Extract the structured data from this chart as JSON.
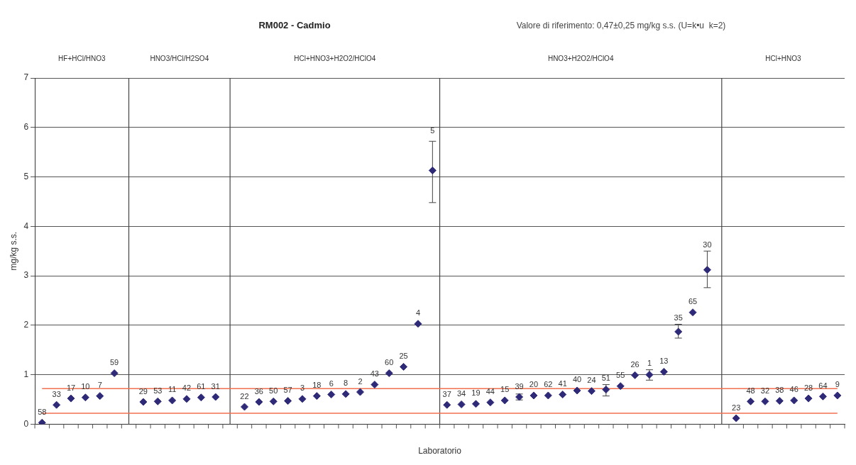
{
  "chart_data": {
    "type": "scatter",
    "title": "RM002 - Cadmio",
    "subtitle": "Valore di riferimento: 0,47±0,25 mg/kg s.s. (U=k•u  k=2)",
    "xlabel": "Laboratorio",
    "ylabel": "mg/kg s.s.",
    "categories": [
      null,
      null,
      null,
      null,
      null,
      null,
      null,
      null,
      null,
      null,
      null,
      null,
      null,
      null,
      null,
      null,
      null,
      null,
      null,
      null,
      null,
      null,
      null,
      null,
      null,
      null,
      null,
      null,
      null,
      null,
      null,
      null,
      null,
      null,
      null,
      null,
      null,
      null,
      null,
      null,
      null,
      null,
      null,
      null,
      null,
      null,
      null,
      null,
      null,
      null,
      null,
      null,
      null,
      null,
      null,
      null
    ],
    "ylim": [
      0,
      7
    ],
    "yticks": [
      0,
      1,
      2,
      3,
      4,
      5,
      6,
      7
    ],
    "grid": true,
    "legend": false,
    "marker": "diamond",
    "series": [
      {
        "color": "#2e2a78",
        "values": [
          0.03,
          0.39,
          0.52,
          0.54,
          0.57,
          1.03,
          null,
          null,
          null,
          null,
          null,
          null,
          null,
          null,
          null,
          null,
          null,
          null,
          null,
          null,
          null,
          null,
          null,
          null,
          null,
          null,
          null,
          null,
          null,
          null,
          null,
          null,
          null,
          null,
          null,
          null,
          null,
          null,
          null,
          null,
          null,
          null,
          null,
          null,
          null,
          null,
          null,
          null,
          null,
          null,
          null,
          null,
          null,
          null,
          null,
          null
        ]
      },
      {
        "color": "#2e2a78",
        "values": [
          null,
          null,
          null,
          null,
          null,
          null,
          null,
          0.45,
          0.46,
          0.48,
          0.51,
          0.54,
          0.55,
          null,
          null,
          null,
          null,
          null,
          null,
          null,
          null,
          null,
          null,
          null,
          null,
          null,
          null,
          null,
          null,
          null,
          null,
          null,
          null,
          null,
          null,
          null,
          null,
          null,
          null,
          null,
          null,
          null,
          null,
          null,
          null,
          null,
          null,
          null,
          null,
          null,
          null,
          null,
          null,
          null,
          null,
          null
        ]
      },
      {
        "color": "#2e2a78",
        "values": [
          null,
          null,
          null,
          null,
          null,
          null,
          null,
          null,
          null,
          null,
          null,
          null,
          null,
          null,
          0.35,
          0.45,
          0.46,
          0.47,
          0.51,
          0.57,
          0.6,
          0.61,
          0.65,
          0.8,
          1.03,
          1.16,
          2.03,
          5.13,
          null,
          null,
          null,
          null,
          null,
          null,
          null,
          null,
          null,
          null,
          null,
          null,
          null,
          null,
          null,
          null,
          null,
          null,
          null,
          null,
          null,
          null,
          null,
          null,
          null,
          null,
          null,
          null
        ],
        "errors": [
          null,
          null,
          null,
          null,
          null,
          null,
          null,
          null,
          null,
          null,
          null,
          null,
          null,
          null,
          null,
          null,
          null,
          null,
          null,
          null,
          null,
          null,
          null,
          null,
          null,
          null,
          null,
          [
            4.48,
            5.72
          ],
          null,
          null,
          null,
          null,
          null,
          null,
          null,
          null,
          null,
          null,
          null,
          null,
          null,
          null,
          null,
          null,
          null,
          null,
          null,
          null,
          null,
          null,
          null,
          null,
          null,
          null,
          null,
          null
        ]
      },
      {
        "color": "#2e2a78",
        "values": [
          null,
          null,
          null,
          null,
          null,
          null,
          null,
          null,
          null,
          null,
          null,
          null,
          null,
          null,
          null,
          null,
          null,
          null,
          null,
          null,
          null,
          null,
          null,
          null,
          null,
          null,
          null,
          null,
          0.39,
          0.4,
          0.41,
          0.44,
          0.48,
          0.55,
          0.58,
          0.58,
          0.6,
          0.68,
          0.67,
          0.7,
          0.77,
          0.99,
          1.0,
          1.06,
          1.87,
          2.26,
          3.12,
          null,
          null,
          null,
          null,
          null,
          null,
          null,
          null,
          null
        ],
        "errors": [
          null,
          null,
          null,
          null,
          null,
          null,
          null,
          null,
          null,
          null,
          null,
          null,
          null,
          null,
          null,
          null,
          null,
          null,
          null,
          null,
          null,
          null,
          null,
          null,
          null,
          null,
          null,
          null,
          null,
          null,
          null,
          null,
          null,
          [
            0.49,
            0.61
          ],
          null,
          null,
          null,
          null,
          null,
          [
            0.57,
            0.8
          ],
          null,
          null,
          [
            0.89,
            1.1
          ],
          null,
          [
            1.74,
            2.02
          ],
          null,
          [
            2.76,
            3.5
          ],
          null,
          null,
          null,
          null,
          null,
          null,
          null,
          null,
          null
        ]
      },
      {
        "color": "#2e2a78",
        "values": [
          null,
          null,
          null,
          null,
          null,
          null,
          null,
          null,
          null,
          null,
          null,
          null,
          null,
          null,
          null,
          null,
          null,
          null,
          null,
          null,
          null,
          null,
          null,
          null,
          null,
          null,
          null,
          null,
          null,
          null,
          null,
          null,
          null,
          null,
          null,
          null,
          null,
          null,
          null,
          null,
          null,
          null,
          null,
          null,
          null,
          null,
          null,
          null,
          0.12,
          0.46,
          0.46,
          0.47,
          0.48,
          0.52,
          0.56,
          0.58
        ]
      }
    ],
    "ref_lines": [
      {
        "axis": "y",
        "value": 0.72,
        "color": "#f07050"
      },
      {
        "axis": "y",
        "value": 0.22,
        "color": "#f07050"
      }
    ],
    "annotations": [
      "HF+HCl/HNO3",
      "HNO3/HCl/H2SO4",
      "HCl+HNO3+H2O2/HClO4",
      "HNO3+H2O2/HClO4",
      "HCl+HNO3",
      {
        "text": "58",
        "y": 0.03
      },
      {
        "text": "33",
        "y": 0.39
      },
      {
        "text": "17",
        "y": 0.52
      },
      {
        "text": "10",
        "y": 0.54
      },
      {
        "text": "7",
        "y": 0.57
      },
      {
        "text": "59",
        "y": 1.03
      },
      {
        "text": "29",
        "y": 0.45
      },
      {
        "text": "53",
        "y": 0.46
      },
      {
        "text": "11",
        "y": 0.48
      },
      {
        "text": "42",
        "y": 0.51
      },
      {
        "text": "61",
        "y": 0.54
      },
      {
        "text": "31",
        "y": 0.55
      },
      {
        "text": "22",
        "y": 0.35
      },
      {
        "text": "36",
        "y": 0.45
      },
      {
        "text": "50",
        "y": 0.46
      },
      {
        "text": "57",
        "y": 0.47
      },
      {
        "text": "3",
        "y": 0.51
      },
      {
        "text": "18",
        "y": 0.57
      },
      {
        "text": "6",
        "y": 0.6
      },
      {
        "text": "8",
        "y": 0.61
      },
      {
        "text": "2",
        "y": 0.65
      },
      {
        "text": "43",
        "y": 0.8
      },
      {
        "text": "60",
        "y": 1.03
      },
      {
        "text": "25",
        "y": 1.16
      },
      {
        "text": "4",
        "y": 2.03
      },
      {
        "text": "5",
        "y": 5.72
      },
      {
        "text": "37",
        "y": 0.39
      },
      {
        "text": "34",
        "y": 0.4
      },
      {
        "text": "19",
        "y": 0.41
      },
      {
        "text": "44",
        "y": 0.44
      },
      {
        "text": "15",
        "y": 0.48
      },
      {
        "text": "39",
        "y": 0.55
      },
      {
        "text": "20",
        "y": 0.58
      },
      {
        "text": "62",
        "y": 0.58
      },
      {
        "text": "41",
        "y": 0.6
      },
      {
        "text": "40",
        "y": 0.68
      },
      {
        "text": "24",
        "y": 0.67
      },
      {
        "text": "51",
        "y": 0.7
      },
      {
        "text": "55",
        "y": 0.77
      },
      {
        "text": "26",
        "y": 0.99
      },
      {
        "text": "1",
        "y": 1.0
      },
      {
        "text": "13",
        "y": 1.06
      },
      {
        "text": "35",
        "y": 1.87
      },
      {
        "text": "65",
        "y": 2.26
      },
      {
        "text": "30",
        "y": 3.12
      },
      {
        "text": "23",
        "y": 0.12
      },
      {
        "text": "48",
        "y": 0.46
      },
      {
        "text": "32",
        "y": 0.46
      },
      {
        "text": "38",
        "y": 0.47
      },
      {
        "text": "46",
        "y": 0.48
      },
      {
        "text": "28",
        "y": 0.52
      },
      {
        "text": "64",
        "y": 0.56
      },
      {
        "text": "9",
        "y": 0.58
      }
    ]
  }
}
